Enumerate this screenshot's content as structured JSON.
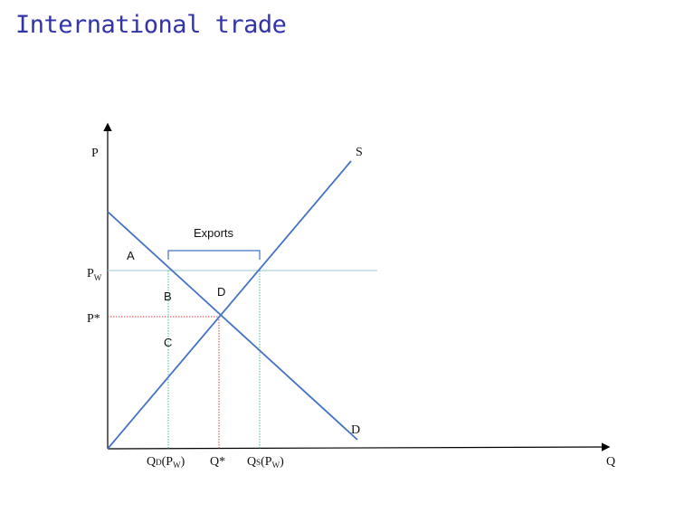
{
  "title": "International trade",
  "axes": {
    "y_label": "P",
    "x_label": "Q"
  },
  "curves": {
    "supply_label": "S",
    "demand_label": "D"
  },
  "bracket_label": "Exports",
  "areas": {
    "a": "A",
    "b": "B",
    "c": "C",
    "d": "D"
  },
  "price_labels": {
    "world": "P",
    "world_sub": "W",
    "autarky": "P*"
  },
  "quantity_labels": {
    "qd_main": "Q",
    "qd_sub": "D",
    "qd_paren_open": "(P",
    "qd_paren_sub": "W",
    "qd_paren_close": ")",
    "qstar": "Q*",
    "qs_main": "Q",
    "qs_sub": "S",
    "qs_paren_open": "(P",
    "qs_paren_sub": "W",
    "qs_paren_close": ")"
  },
  "colors": {
    "title": "#3333aa",
    "curve": "#4472c4",
    "world_price_line": "#9ec5d6",
    "equilibrium_guide": "#e04040",
    "quantity_guide": "#3fbf9f",
    "axis": "#000000"
  }
}
